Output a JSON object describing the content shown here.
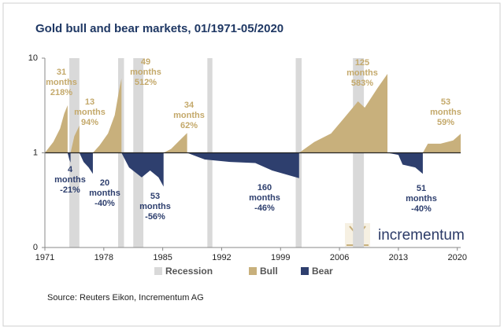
{
  "chart_data": {
    "type": "area",
    "title": "Gold bull and bear markets, 01/1971-05/2020",
    "source": "Source: Reuters Eikon, Incrementum AG",
    "logo": "incrementum",
    "log_scale": true,
    "xlim": [
      1971,
      2020.4
    ],
    "xticks": [
      1971,
      1978,
      1985,
      1992,
      1999,
      2006,
      2013,
      2020
    ],
    "ylim": [
      0.1,
      10
    ],
    "yticks": [
      {
        "value": 0.1,
        "label": "0"
      },
      1,
      10
    ],
    "baseline": 1,
    "series": [
      {
        "name": "Recession",
        "color": "#d9d9d9",
        "intervals": [
          [
            1973.9,
            1975.1
          ],
          [
            1979.7,
            1980.4
          ],
          [
            1981.5,
            1982.7
          ],
          [
            1990.3,
            1990.9
          ],
          [
            2000.8,
            2001.5
          ],
          [
            2007.6,
            2008.9
          ]
        ]
      },
      {
        "name": "Bull",
        "color": "#c8b07c",
        "text_color": "#c4a96b",
        "segments": [
          {
            "x": [
              1971,
              1972,
              1972.8,
              1973.3,
              1973.7
            ],
            "values": [
              1,
              1.3,
              1.8,
              2.6,
              3.18
            ],
            "label": [
              "31",
              "months",
              "218%"
            ]
          },
          {
            "x": [
              1974.05,
              1974.5,
              1975.1
            ],
            "values": [
              1,
              1.5,
              1.94
            ],
            "label": [
              "13",
              "months",
              "94%"
            ]
          },
          {
            "x": [
              1976.7,
              1977.5,
              1978.5,
              1979.3,
              1979.8,
              1980.1
            ],
            "values": [
              1,
              1.2,
              1.6,
              2.5,
              4.5,
              6.12
            ],
            "label": [
              "49",
              "months",
              "512%"
            ]
          },
          {
            "x": [
              1985.1,
              1986,
              1987,
              1987.9
            ],
            "values": [
              1,
              1.1,
              1.35,
              1.62
            ],
            "label": [
              "34",
              "months",
              "62%"
            ]
          },
          {
            "x": [
              2001.2,
              2003,
              2005,
              2006.5,
              2008.2,
              2009,
              2010.5,
              2011.7
            ],
            "values": [
              1,
              1.3,
              1.6,
              2.3,
              3.5,
              3.0,
              4.8,
              6.83
            ],
            "label": [
              "125",
              "months",
              "583%"
            ]
          },
          {
            "x": [
              2015.9,
              2016.5,
              2018,
              2019.5,
              2020.4
            ],
            "values": [
              1,
              1.25,
              1.25,
              1.35,
              1.59
            ],
            "label": [
              "53",
              "months",
              "59%"
            ]
          }
        ]
      },
      {
        "name": "Bear",
        "color": "#2e3f6e",
        "text_color": "#2e3f6e",
        "segments": [
          {
            "x": [
              1973.7,
              1973.9,
              1974.05
            ],
            "values": [
              1,
              0.85,
              0.79
            ],
            "label": [
              "4",
              "months",
              "-21%"
            ]
          },
          {
            "x": [
              1975.1,
              1975.6,
              1976.2,
              1976.7
            ],
            "values": [
              1,
              0.8,
              0.7,
              0.6
            ],
            "label": [
              "20",
              "months",
              "-40%"
            ]
          },
          {
            "x": [
              1980.1,
              1981,
              1982.5,
              1983.5,
              1984.5,
              1985.1
            ],
            "values": [
              1,
              0.7,
              0.55,
              0.65,
              0.55,
              0.44
            ],
            "label": [
              "53",
              "months",
              "-56%"
            ]
          },
          {
            "x": [
              1987.9,
              1990,
              1993,
              1996,
              1998,
              2001.2
            ],
            "values": [
              1,
              0.85,
              0.8,
              0.78,
              0.65,
              0.54
            ],
            "label": [
              "160",
              "months",
              "-46%"
            ]
          },
          {
            "x": [
              2011.7,
              2013,
              2013.5,
              2015,
              2015.9
            ],
            "values": [
              1,
              0.95,
              0.75,
              0.7,
              0.6
            ],
            "label": [
              "51",
              "months",
              "-40%"
            ]
          }
        ]
      }
    ]
  }
}
